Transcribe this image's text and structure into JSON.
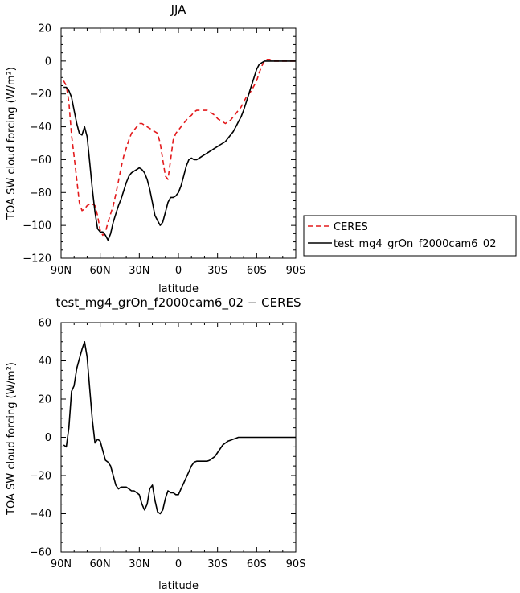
{
  "chart_data": [
    {
      "type": "line",
      "title": "JJA",
      "xlabel": "latitude",
      "ylabel": "TOA SW cloud forcing (W/m²)",
      "xlim": [
        90,
        -90
      ],
      "ylim": [
        -120,
        20
      ],
      "xticks": [
        90,
        60,
        30,
        0,
        -30,
        -60,
        -90
      ],
      "xtick_labels": [
        "90N",
        "60N",
        "30N",
        "0",
        "30S",
        "60S",
        "90S"
      ],
      "yticks": [
        20,
        0,
        -20,
        -40,
        -60,
        -80,
        -100,
        -120
      ],
      "ytick_labels": [
        "20",
        "0",
        "−20",
        "−40",
        "−60",
        "−80",
        "−100",
        "−120"
      ],
      "legend": "right",
      "series": [
        {
          "name": "CERES",
          "color": "#e31a1c",
          "dash": "dashed",
          "x": [
            88,
            86,
            84,
            82,
            80,
            78,
            76,
            74,
            72,
            70,
            68,
            66,
            64,
            62,
            60,
            58,
            56,
            54,
            52,
            50,
            48,
            46,
            44,
            42,
            40,
            38,
            36,
            34,
            32,
            30,
            28,
            26,
            24,
            22,
            20,
            18,
            16,
            14,
            12,
            10,
            8,
            6,
            4,
            2,
            0,
            -2,
            -4,
            -6,
            -8,
            -10,
            -12,
            -14,
            -16,
            -18,
            -20,
            -22,
            -24,
            -26,
            -28,
            -30,
            -32,
            -34,
            -36,
            -38,
            -40,
            -42,
            -44,
            -46,
            -48,
            -50,
            -52,
            -54,
            -56,
            -58,
            -60,
            -62,
            -64,
            -66,
            -68,
            -70,
            -72,
            -74,
            -76,
            -78,
            -80,
            -82,
            -84,
            -86,
            -88,
            -90
          ],
          "y": [
            -12,
            -15,
            -25,
            -45,
            -58,
            -72,
            -86,
            -91,
            -90,
            -88,
            -87,
            -87,
            -88,
            -94,
            -103,
            -106,
            -104,
            -98,
            -93,
            -88,
            -81,
            -73,
            -65,
            -58,
            -53,
            -48,
            -44,
            -42,
            -40,
            -38,
            -38,
            -39,
            -40,
            -41,
            -42,
            -43,
            -44,
            -50,
            -60,
            -70,
            -72,
            -60,
            -48,
            -44,
            -42,
            -40,
            -38,
            -36,
            -34,
            -33,
            -31,
            -30,
            -30,
            -30,
            -30,
            -30,
            -31,
            -32,
            -33,
            -35,
            -36,
            -37,
            -38,
            -37,
            -36,
            -34,
            -32,
            -30,
            -28,
            -25,
            -22,
            -20,
            -18,
            -15,
            -12,
            -7,
            -3,
            0,
            1,
            1,
            0,
            0,
            0,
            0,
            0,
            0,
            0,
            0,
            0,
            0
          ]
        },
        {
          "name": "test_mg4_grOn_f2000cam6_02",
          "color": "#000000",
          "dash": "solid",
          "x": [
            88,
            86,
            84,
            82,
            80,
            78,
            76,
            74,
            72,
            70,
            68,
            66,
            64,
            62,
            60,
            58,
            56,
            54,
            52,
            50,
            48,
            46,
            44,
            42,
            40,
            38,
            36,
            34,
            32,
            30,
            28,
            26,
            24,
            22,
            20,
            18,
            16,
            14,
            12,
            10,
            8,
            6,
            4,
            2,
            0,
            -2,
            -4,
            -6,
            -8,
            -10,
            -12,
            -14,
            -16,
            -18,
            -20,
            -22,
            -24,
            -26,
            -28,
            -30,
            -32,
            -34,
            -36,
            -38,
            -40,
            -42,
            -44,
            -46,
            -48,
            -50,
            -52,
            -54,
            -56,
            -58,
            -60,
            -62,
            -64,
            -66,
            -68,
            -70,
            -72,
            -74,
            -76,
            -78,
            -80,
            -82,
            -84,
            -86,
            -88,
            -90
          ],
          "y": [
            -16,
            -16,
            -18,
            -22,
            -30,
            -38,
            -44,
            -45,
            -40,
            -46,
            -62,
            -78,
            -92,
            -102,
            -104,
            -104,
            -106,
            -109,
            -105,
            -98,
            -93,
            -88,
            -84,
            -79,
            -74,
            -70,
            -68,
            -67,
            -66,
            -65,
            -66,
            -68,
            -72,
            -78,
            -86,
            -94,
            -97,
            -100,
            -98,
            -92,
            -86,
            -83,
            -83,
            -82,
            -80,
            -76,
            -70,
            -64,
            -60,
            -59,
            -60,
            -60,
            -59,
            -58,
            -57,
            -56,
            -55,
            -54,
            -53,
            -52,
            -51,
            -50,
            -49,
            -47,
            -45,
            -43,
            -40,
            -37,
            -34,
            -30,
            -25,
            -20,
            -15,
            -10,
            -5,
            -2,
            -1,
            0,
            0,
            0,
            0,
            0,
            0,
            0,
            0,
            0,
            0,
            0,
            0,
            0
          ]
        }
      ]
    },
    {
      "type": "line",
      "title": "test_mg4_grOn_f2000cam6_02 − CERES",
      "xlabel": "latitude",
      "ylabel": "TOA SW cloud forcing (W/m²)",
      "xlim": [
        90,
        -90
      ],
      "ylim": [
        -60,
        60
      ],
      "xticks": [
        90,
        60,
        30,
        0,
        -30,
        -60,
        -90
      ],
      "xtick_labels": [
        "90N",
        "60N",
        "30N",
        "0",
        "30S",
        "60S",
        "90S"
      ],
      "yticks": [
        60,
        40,
        20,
        0,
        -20,
        -40,
        -60
      ],
      "ytick_labels": [
        "60",
        "40",
        "20",
        "0",
        "−20",
        "−40",
        "−60"
      ],
      "series": [
        {
          "color": "#000000",
          "dash": "solid",
          "x": [
            88,
            86,
            84,
            82,
            80,
            78,
            76,
            74,
            72,
            70,
            68,
            66,
            64,
            62,
            60,
            58,
            56,
            54,
            52,
            50,
            48,
            46,
            44,
            42,
            40,
            38,
            36,
            34,
            32,
            30,
            28,
            26,
            24,
            22,
            20,
            18,
            16,
            14,
            12,
            10,
            8,
            6,
            4,
            2,
            0,
            -2,
            -4,
            -6,
            -8,
            -10,
            -12,
            -14,
            -16,
            -18,
            -20,
            -22,
            -24,
            -26,
            -28,
            -30,
            -32,
            -34,
            -36,
            -38,
            -40,
            -42,
            -44,
            -46,
            -48,
            -50,
            -52,
            -54,
            -56,
            -58,
            -60,
            -62,
            -64,
            -66,
            -68,
            -70,
            -72,
            -74,
            -76,
            -78,
            -80,
            -82,
            -84,
            -86,
            -88,
            -90
          ],
          "y": [
            -4,
            -5,
            5,
            24,
            27,
            36,
            41,
            46,
            50,
            42,
            25,
            9,
            -3,
            -1,
            -2,
            -7,
            -12,
            -13,
            -15,
            -20,
            -25,
            -27,
            -26,
            -26,
            -26,
            -27,
            -28,
            -28,
            -29,
            -30,
            -35,
            -38,
            -35,
            -27,
            -25,
            -33,
            -39,
            -40,
            -38,
            -32,
            -28,
            -29,
            -29,
            -30,
            -30,
            -27,
            -24,
            -21,
            -18,
            -15,
            -13,
            -12.5,
            -12.5,
            -12.5,
            -12.5,
            -12.5,
            -12,
            -11,
            -10,
            -8,
            -6,
            -4,
            -3,
            -2,
            -1.5,
            -1,
            -0.5,
            0,
            0,
            0,
            0,
            0,
            0,
            0,
            0,
            0,
            0,
            0,
            0,
            0,
            0,
            0,
            0,
            0,
            0,
            0,
            0,
            0,
            0,
            0
          ]
        }
      ]
    }
  ]
}
